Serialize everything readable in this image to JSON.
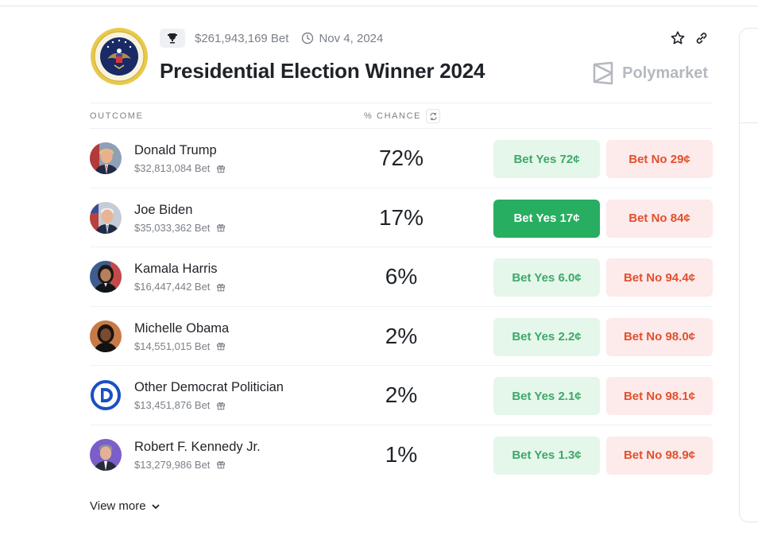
{
  "market": {
    "title": "Presidential Election Winner 2024",
    "volume": "$261,943,169 Bet",
    "end_date": "Nov 4, 2024",
    "brand": "Polymarket",
    "columns": {
      "outcome": "OUTCOME",
      "chance": "% CHANCE"
    },
    "view_more": "View more",
    "outcomes": [
      {
        "name": "Donald Trump",
        "volume": "$32,813,084 Bet",
        "chance": "72%",
        "yes": "Bet Yes 72¢",
        "no": "Bet No 29¢",
        "avatar_icon": "person-avatar-trump"
      },
      {
        "name": "Joe Biden",
        "volume": "$35,033,362 Bet",
        "chance": "17%",
        "yes": "Bet Yes 17¢",
        "no": "Bet No 84¢",
        "avatar_icon": "person-avatar-biden"
      },
      {
        "name": "Kamala Harris",
        "volume": "$16,447,442 Bet",
        "chance": "6%",
        "yes": "Bet Yes 6.0¢",
        "no": "Bet No 94.4¢",
        "avatar_icon": "person-avatar-harris"
      },
      {
        "name": "Michelle Obama",
        "volume": "$14,551,015 Bet",
        "chance": "2%",
        "yes": "Bet Yes 2.2¢",
        "no": "Bet No 98.0¢",
        "avatar_icon": "person-avatar-obama"
      },
      {
        "name": "Other Democrat Politician",
        "volume": "$13,451,876 Bet",
        "chance": "2%",
        "yes": "Bet Yes 2.1¢",
        "no": "Bet No 98.1¢",
        "avatar_icon": "democrat-logo"
      },
      {
        "name": "Robert F. Kennedy Jr.",
        "volume": "$13,279,986 Bet",
        "chance": "1%",
        "yes": "Bet Yes 1.3¢",
        "no": "Bet No 98.9¢",
        "avatar_icon": "person-avatar-kennedy"
      }
    ]
  },
  "colors": {
    "yes_bg": "#e5f7ea",
    "yes_text": "#3ea86a",
    "yes_active_bg": "#27ae60",
    "no_bg": "#fdeaea",
    "no_text": "#e0512d"
  }
}
